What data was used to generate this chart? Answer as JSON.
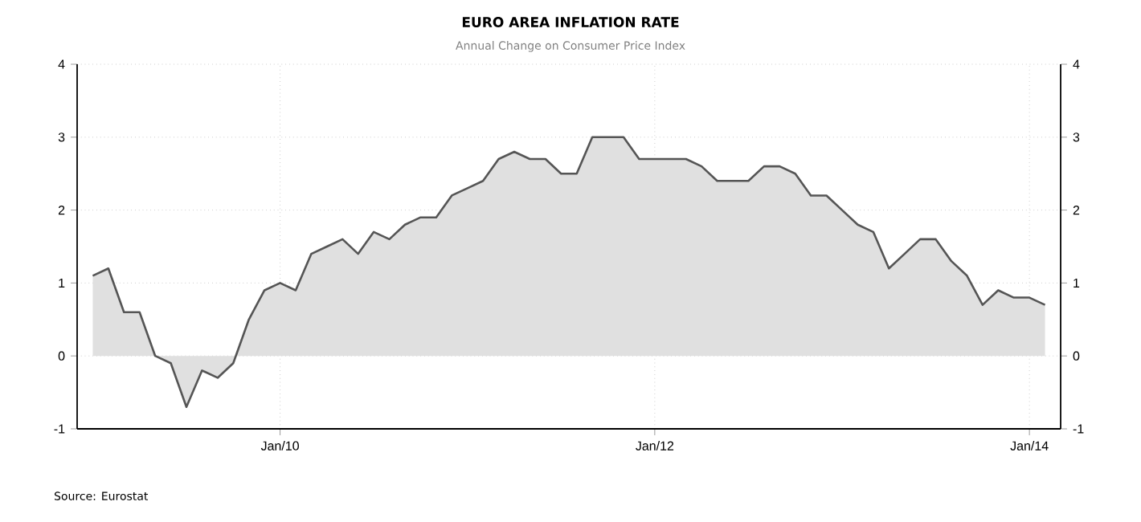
{
  "chart_data": {
    "type": "area",
    "title": "EURO AREA INFLATION RATE",
    "subtitle": "Annual Change on Consumer Price Index",
    "annotations": [
      "Source: Eurostat"
    ],
    "x": [
      "2009-01",
      "2009-02",
      "2009-03",
      "2009-04",
      "2009-05",
      "2009-06",
      "2009-07",
      "2009-08",
      "2009-09",
      "2009-10",
      "2009-11",
      "2009-12",
      "2010-01",
      "2010-02",
      "2010-03",
      "2010-04",
      "2010-05",
      "2010-06",
      "2010-07",
      "2010-08",
      "2010-09",
      "2010-10",
      "2010-11",
      "2010-12",
      "2011-01",
      "2011-02",
      "2011-03",
      "2011-04",
      "2011-05",
      "2011-06",
      "2011-07",
      "2011-08",
      "2011-09",
      "2011-10",
      "2011-11",
      "2011-12",
      "2012-01",
      "2012-02",
      "2012-03",
      "2012-04",
      "2012-05",
      "2012-06",
      "2012-07",
      "2012-08",
      "2012-09",
      "2012-10",
      "2012-11",
      "2012-12",
      "2013-01",
      "2013-02",
      "2013-03",
      "2013-04",
      "2013-05",
      "2013-06",
      "2013-07",
      "2013-08",
      "2013-09",
      "2013-10",
      "2013-11",
      "2013-12",
      "2014-01",
      "2014-02"
    ],
    "series": [
      {
        "color": "#555555",
        "values": [
          1.1,
          1.2,
          0.6,
          0.6,
          0.0,
          -0.1,
          -0.7,
          -0.2,
          -0.3,
          -0.1,
          0.5,
          0.9,
          1.0,
          0.9,
          1.4,
          1.5,
          1.6,
          1.4,
          1.7,
          1.6,
          1.8,
          1.9,
          1.9,
          2.2,
          2.3,
          2.4,
          2.7,
          2.8,
          2.7,
          2.7,
          2.5,
          2.5,
          3.0,
          3.0,
          3.0,
          2.7,
          2.7,
          2.7,
          2.7,
          2.6,
          2.4,
          2.4,
          2.4,
          2.6,
          2.6,
          2.5,
          2.2,
          2.2,
          2.0,
          1.8,
          1.7,
          1.2,
          1.4,
          1.6,
          1.6,
          1.3,
          1.1,
          0.7,
          0.9,
          0.8,
          0.8,
          0.7
        ]
      }
    ],
    "xlim": [
      "2008-12",
      "2014-03"
    ],
    "xticks": [
      {
        "value": "2010-01",
        "label": "Jan/10"
      },
      {
        "value": "2012-01",
        "label": "Jan/12"
      },
      {
        "value": "2014-01",
        "label": "Jan/14"
      }
    ],
    "ylim": [
      -1,
      4
    ],
    "yticks": [
      -1,
      0,
      1,
      2,
      3,
      4
    ],
    "y2lim": [
      -1,
      4
    ],
    "y2ticks": [
      -1,
      0,
      1,
      2,
      3,
      4
    ],
    "grid": true,
    "marker": "none",
    "line_style": "solid"
  }
}
